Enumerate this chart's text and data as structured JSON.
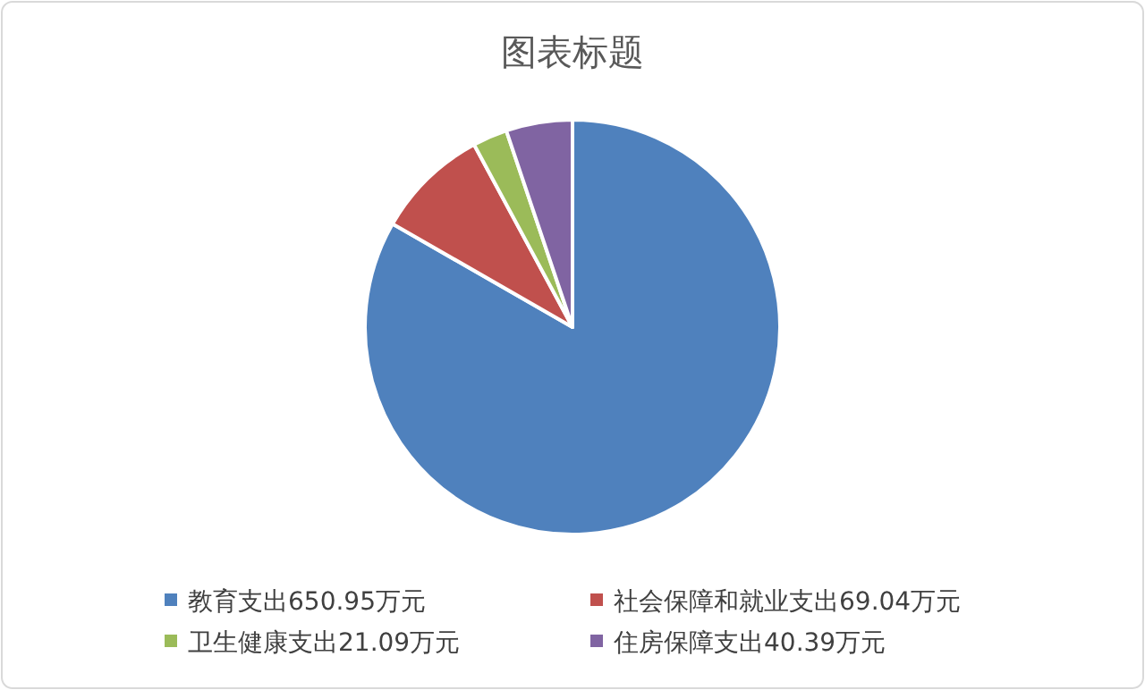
{
  "chart_data": {
    "type": "pie",
    "title": "图表标题",
    "categories": [
      "教育支出650.95万元",
      "社会保障和就业支出69.04万元",
      "卫生健康支出21.09万元",
      "住房保障支出40.39万元"
    ],
    "values": [
      650.95,
      69.04,
      21.09,
      40.39
    ],
    "colors": [
      "#4f81bd",
      "#c0504d",
      "#9bbb59",
      "#8064a2"
    ],
    "legend": "bottom"
  }
}
